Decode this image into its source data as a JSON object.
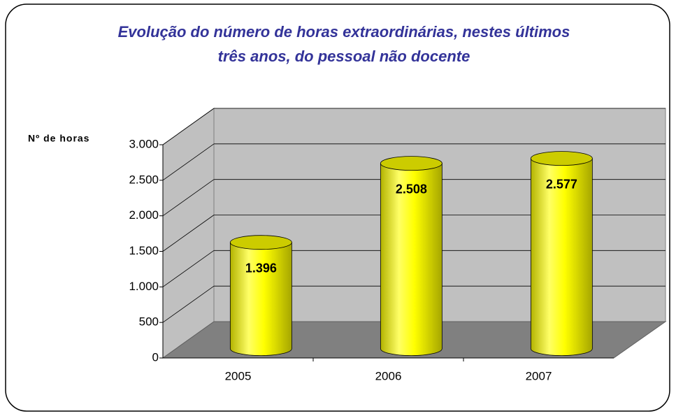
{
  "chart_data": {
    "type": "bar3d",
    "title": "Evolução do número de horas extraordinárias, nestes últimos",
    "subtitle": "três anos, do pessoal não docente",
    "y_label": "Nº de horas",
    "categories": [
      "2005",
      "2006",
      "2007"
    ],
    "values": [
      1396,
      2508,
      2577
    ],
    "value_labels": [
      "1.396",
      "2.508",
      "2.577"
    ],
    "color": "#ffff00",
    "ylim": [
      0,
      3000
    ],
    "yticks": [
      0,
      {
        "value": 500,
        "label": "500"
      },
      {
        "value": 1000,
        "label": "1.000"
      },
      {
        "value": 1500,
        "label": "1.500"
      },
      {
        "value": 2000,
        "label": "2.000"
      },
      {
        "value": 2500,
        "label": "2.500"
      },
      {
        "value": 3000,
        "label": "3.000"
      }
    ],
    "grid": true
  }
}
